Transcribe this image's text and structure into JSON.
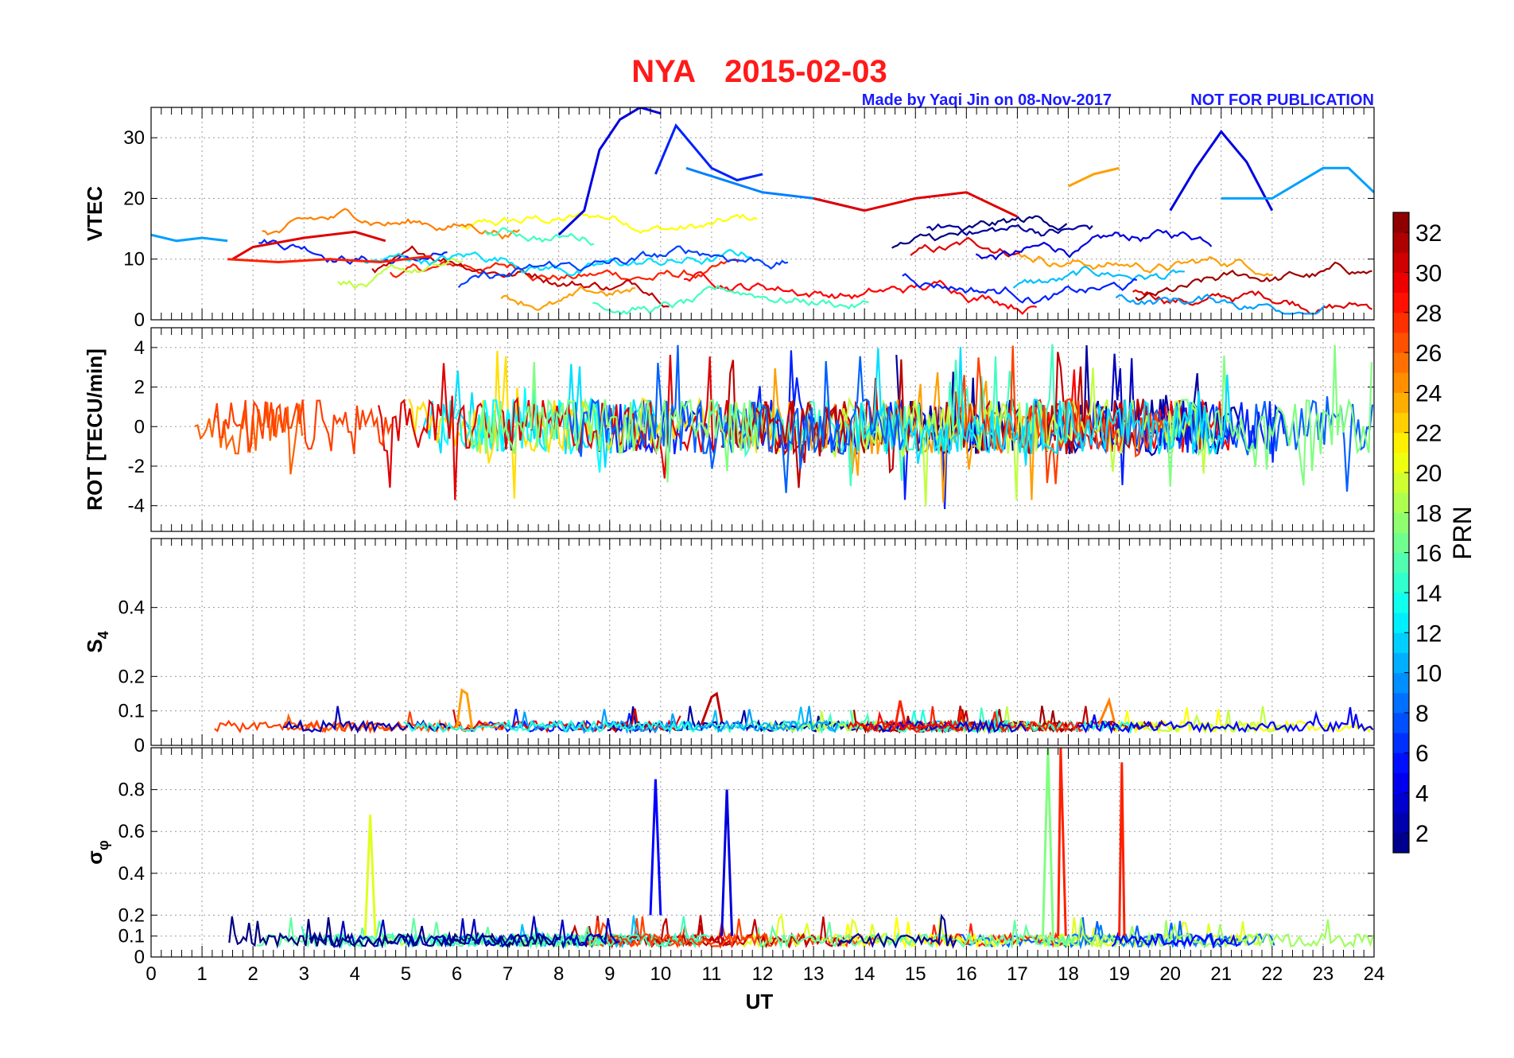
{
  "title": {
    "station": "NYA",
    "date": "2015-02-03",
    "color": "#ff1a1a"
  },
  "credit": {
    "maker": "Made by Yaqi Jin on 08-Nov-2017",
    "notice": "NOT FOR PUBLICATION",
    "color": "#1a1aff"
  },
  "chart_data": [
    {
      "type": "line",
      "name": "vtec",
      "ylabel": "VTEC",
      "ylim": [
        0,
        35
      ],
      "yticks": [
        "0",
        "10",
        "20",
        "30"
      ],
      "series": [
        {
          "prn": 10,
          "x": [
            0,
            0.5,
            1,
            1.5
          ],
          "y": [
            14,
            13,
            13.5,
            13
          ]
        },
        {
          "prn": 30,
          "x": [
            1.6,
            2,
            3,
            4,
            4.6
          ],
          "y": [
            10,
            12,
            13.5,
            14.5,
            13
          ]
        },
        {
          "prn": 28,
          "x": [
            1.5,
            2.5,
            3.5,
            4.5,
            5.5
          ],
          "y": [
            10,
            9.5,
            10,
            9.5,
            10.5
          ]
        },
        {
          "prn": 4,
          "x": [
            8,
            8.5,
            8.8,
            9.2,
            9.6,
            10
          ],
          "y": [
            14,
            18,
            28,
            33,
            35,
            34
          ]
        },
        {
          "prn": 6,
          "x": [
            9.9,
            10.3,
            11,
            11.5,
            12
          ],
          "y": [
            24,
            32,
            25,
            23,
            24
          ]
        },
        {
          "prn": 9,
          "x": [
            10.5,
            12,
            13,
            14
          ],
          "y": [
            25,
            21,
            20,
            18
          ]
        },
        {
          "prn": 30,
          "x": [
            13,
            14,
            15,
            16,
            17
          ],
          "y": [
            20,
            18,
            20,
            21,
            17
          ]
        },
        {
          "prn": 4,
          "x": [
            20,
            20.5,
            21,
            21.5,
            22
          ],
          "y": [
            18,
            25,
            31,
            26,
            18
          ]
        },
        {
          "prn": 10,
          "x": [
            21,
            22,
            23,
            23.5,
            24
          ],
          "y": [
            20,
            20,
            25,
            25,
            21
          ]
        },
        {
          "prn": 24,
          "x": [
            18,
            18.5,
            19
          ],
          "y": [
            22,
            24,
            25
          ]
        }
      ]
    },
    {
      "type": "line",
      "name": "rot",
      "ylabel": "ROT [TECU/min]",
      "ylim": [
        -5.3,
        5
      ],
      "yticks": [
        "-4",
        "-2",
        "0",
        "2",
        "4"
      ]
    },
    {
      "type": "line",
      "name": "s4",
      "ylabel": "S",
      "ylabel_sub": "4",
      "ylim": [
        0,
        0.6
      ],
      "yticks": [
        "0",
        "0.1",
        "0.2",
        "0.4"
      ],
      "series": [
        {
          "prn": 24,
          "x": [
            6,
            6.1,
            6.2,
            6.3
          ],
          "y": [
            0.05,
            0.16,
            0.15,
            0.05
          ]
        },
        {
          "prn": 31,
          "x": [
            10.8,
            11,
            11.1,
            11.2
          ],
          "y": [
            0.06,
            0.14,
            0.15,
            0.07
          ]
        },
        {
          "prn": 28,
          "x": [
            14.6,
            14.7,
            14.8
          ],
          "y": [
            0.05,
            0.13,
            0.06
          ]
        },
        {
          "prn": 25,
          "x": [
            18.6,
            18.8,
            18.9
          ],
          "y": [
            0.06,
            0.13,
            0.07
          ]
        }
      ]
    },
    {
      "type": "line",
      "name": "sigma_phi",
      "ylabel": "σ",
      "ylabel_sub": "φ",
      "ylim": [
        0,
        1
      ],
      "yticks": [
        "0",
        "0.1",
        "0.2",
        "0.4",
        "0.6",
        "0.8"
      ],
      "series": [
        {
          "prn": 20,
          "x": [
            4.2,
            4.3,
            4.4
          ],
          "y": [
            0.1,
            0.68,
            0.1
          ]
        },
        {
          "prn": 5,
          "x": [
            9.8,
            9.9,
            10
          ],
          "y": [
            0.2,
            0.85,
            0.2
          ]
        },
        {
          "prn": 4,
          "x": [
            11.2,
            11.3,
            11.4
          ],
          "y": [
            0.1,
            0.8,
            0.1
          ]
        },
        {
          "prn": 17,
          "x": [
            17.5,
            17.6,
            17.7
          ],
          "y": [
            0.1,
            1,
            0.1
          ]
        },
        {
          "prn": 28,
          "x": [
            17.8,
            17.85,
            17.95
          ],
          "y": [
            0.1,
            1,
            0.1
          ]
        },
        {
          "prn": 28,
          "x": [
            19,
            19.05,
            19.1
          ],
          "y": [
            0.1,
            0.93,
            0.1
          ]
        }
      ]
    }
  ],
  "x_axis": {
    "label": "UT",
    "range": [
      0,
      24
    ],
    "ticks": [
      "0",
      "1",
      "2",
      "3",
      "4",
      "5",
      "6",
      "7",
      "8",
      "9",
      "10",
      "11",
      "12",
      "13",
      "14",
      "15",
      "16",
      "17",
      "18",
      "19",
      "20",
      "21",
      "22",
      "23",
      "24"
    ]
  },
  "colorbar": {
    "label": "PRN",
    "range": [
      1,
      33
    ],
    "ticks": [
      "2",
      "4",
      "6",
      "8",
      "10",
      "12",
      "14",
      "16",
      "18",
      "20",
      "22",
      "24",
      "26",
      "28",
      "30",
      "32"
    ]
  }
}
